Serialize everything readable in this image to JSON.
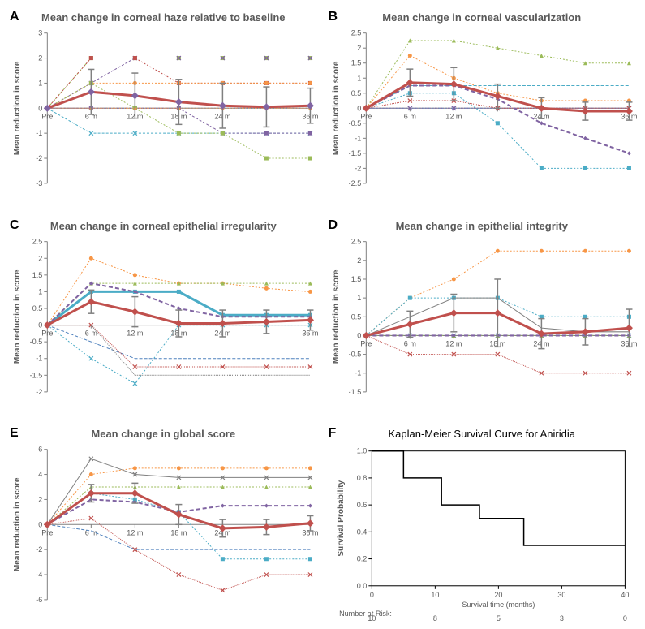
{
  "panels": {
    "A": {
      "label": "A",
      "title": "Mean change in corneal haze relative to baseline",
      "ylabel": "Mean reduction in score",
      "xticks": [
        "Pre",
        "6 m",
        "12 m",
        "18 m",
        "24 m",
        "",
        "36 m"
      ],
      "ylim": [
        -3,
        3
      ],
      "ytick_step": 1,
      "main": {
        "color": "#c0504d",
        "values": [
          0,
          0.65,
          0.5,
          0.25,
          0.1,
          0.05,
          0.1
        ],
        "marker": "diamond",
        "marker_color": "#8064a2",
        "err": [
          0,
          0.9,
          0.9,
          0.9,
          0.9,
          0.8,
          0.7
        ]
      },
      "series": [
        {
          "color": "#9bbb59",
          "dash": "3,2",
          "values": [
            0,
            2,
            2,
            2,
            2,
            2,
            2
          ],
          "marker": "square"
        },
        {
          "color": "#8064a2",
          "dash": "3,2",
          "values": [
            0,
            1,
            2,
            2,
            2,
            2,
            2
          ],
          "marker": "x"
        },
        {
          "color": "#c0504d",
          "dash": "2,2",
          "values": [
            0,
            2,
            2,
            1,
            1,
            1,
            1
          ],
          "marker": "square"
        },
        {
          "color": "#4f81bd",
          "dash": "2,2",
          "values": [
            0,
            0,
            0,
            0,
            0,
            0,
            0
          ],
          "marker": "diamond"
        },
        {
          "color": "#f79646",
          "dash": "2,2",
          "values": [
            0,
            1,
            1,
            1,
            1,
            1,
            1
          ],
          "marker": "circle"
        },
        {
          "color": "#4bacc6",
          "dash": "3,2",
          "values": [
            0,
            -1,
            -1,
            -1,
            -1,
            -1,
            -1
          ],
          "marker": "x"
        },
        {
          "color": "#8064a2",
          "dash": "3,2",
          "values": [
            0,
            0,
            0,
            0,
            -1,
            -1,
            -1
          ],
          "marker": "square"
        },
        {
          "color": "#9bbb59",
          "dash": "2,2",
          "values": [
            0,
            1,
            0,
            -1,
            -1,
            -2,
            -2
          ],
          "marker": "square"
        },
        {
          "color": "#f79646",
          "dash": "1,1",
          "values": [
            0,
            0,
            0,
            0,
            0,
            0,
            0
          ],
          "marker": "triangle"
        }
      ]
    },
    "B": {
      "label": "B",
      "title": "Mean change in corneal vascularization",
      "ylabel": "Mean reduction in score",
      "xticks": [
        "Pre",
        "6 m",
        "12 m",
        "",
        "24 m",
        "",
        "36 m"
      ],
      "ylim": [
        -2.5,
        2.5
      ],
      "ytick_step": 0.5,
      "main": {
        "color": "#c0504d",
        "values": [
          0,
          0.85,
          0.8,
          0.4,
          0,
          -0.1,
          -0.1
        ],
        "marker": "diamond",
        "marker_color": "#c0504d",
        "err": [
          0,
          0.45,
          0.55,
          0.4,
          0.35,
          0.3,
          0.3
        ]
      },
      "secondary": {
        "color": "#8064a2",
        "dash": "5,3",
        "values": [
          0,
          0.75,
          0.75,
          0.3,
          -0.5,
          -1,
          -1.5
        ],
        "marker": "diamond",
        "width": 2
      },
      "series": [
        {
          "color": "#9bbb59",
          "dash": "2,2",
          "values": [
            0,
            2.25,
            2.25,
            2,
            1.75,
            1.5,
            1.5
          ],
          "marker": "triangle"
        },
        {
          "color": "#f79646",
          "dash": "2,2",
          "values": [
            0,
            1.75,
            1,
            0.5,
            0.25,
            0.25,
            0.25
          ],
          "marker": "circle"
        },
        {
          "color": "#4bacc6",
          "dash": "4,2",
          "values": [
            0,
            0.75,
            0.75,
            0.75,
            0.75,
            0.75,
            0.75
          ],
          "marker": "none"
        },
        {
          "color": "#4f81bd",
          "dash": "2,2",
          "values": [
            0,
            0,
            0,
            0,
            0,
            0,
            0
          ],
          "marker": "x"
        },
        {
          "color": "#8064a2",
          "dash": "1,1",
          "values": [
            0,
            0,
            0,
            0,
            0,
            0,
            0
          ],
          "marker": "x"
        },
        {
          "color": "#4bacc6",
          "dash": "2,2",
          "values": [
            0,
            0.5,
            0.5,
            -0.5,
            -2,
            -2,
            -2
          ],
          "marker": "square"
        },
        {
          "color": "#c0504d",
          "dash": "1,1",
          "values": [
            0,
            0.25,
            0.25,
            0,
            0,
            0,
            0
          ],
          "marker": "x"
        }
      ]
    },
    "C": {
      "label": "C",
      "title": "Mean change in corneal epithelial irregularity",
      "ylabel": "Mean reduction in score",
      "xticks": [
        "Pre",
        "6 m",
        "12 m",
        "18 m",
        "24 m",
        "",
        "36 m"
      ],
      "ylim": [
        -2,
        2.5
      ],
      "ytick_step": 0.5,
      "main": {
        "color": "#c0504d",
        "values": [
          0,
          0.7,
          0.4,
          0.05,
          0.05,
          0.1,
          0.15
        ],
        "marker": "diamond",
        "marker_color": "#c0504d",
        "err": [
          0,
          0.35,
          0.45,
          0.4,
          0.4,
          0.35,
          0.3
        ]
      },
      "secondary": {
        "color": "#8064a2",
        "dash": "5,3",
        "values": [
          0,
          1.25,
          1,
          0.5,
          0.25,
          0.25,
          0.25
        ],
        "marker": "diamond",
        "width": 2
      },
      "tertiary": {
        "color": "#4bacc6",
        "dash": "0",
        "values": [
          0,
          1,
          1,
          1,
          0.3,
          0.3,
          0.3
        ],
        "marker": "square",
        "width": 3
      },
      "series": [
        {
          "color": "#f79646",
          "dash": "2,2",
          "values": [
            0,
            2,
            1.5,
            1.25,
            1.25,
            1.1,
            1
          ],
          "marker": "circle"
        },
        {
          "color": "#9bbb59",
          "dash": "2,2",
          "values": [
            0,
            1.25,
            1.25,
            1.25,
            1.25,
            1.25,
            1.25
          ],
          "marker": "triangle"
        },
        {
          "color": "#4f81bd",
          "dash": "4,2",
          "values": [
            0,
            -0.5,
            -1,
            -1,
            -1,
            -1,
            -1
          ],
          "marker": "none"
        },
        {
          "color": "#4bacc6",
          "dash": "2,2",
          "values": [
            0,
            -1,
            -1.75,
            0,
            0,
            0,
            0
          ],
          "marker": "x"
        },
        {
          "color": "#c0504d",
          "dash": "1,1",
          "values": [
            0,
            0,
            -1.25,
            -1.25,
            -1.25,
            -1.25,
            -1.25
          ],
          "marker": "x"
        },
        {
          "color": "#808080",
          "dash": "1,1",
          "values": [
            0,
            0,
            -1.5,
            -1.5,
            -1.5,
            -1.5,
            -1.5
          ],
          "marker": "none"
        }
      ]
    },
    "D": {
      "label": "D",
      "title": "Mean change in epithelial integrity",
      "ylabel": "Mean reduction in score",
      "xticks": [
        "Pre",
        "6 m",
        "12 m",
        "18 m",
        "24 m",
        "",
        "36 m"
      ],
      "ylim": [
        -1.5,
        2.5
      ],
      "ytick_step": 0.5,
      "main": {
        "color": "#c0504d",
        "values": [
          0,
          0.3,
          0.6,
          0.6,
          0.05,
          0.1,
          0.2
        ],
        "marker": "diamond",
        "marker_color": "#c0504d",
        "err": [
          0,
          0.35,
          0.5,
          0.9,
          0.4,
          0.35,
          0.5
        ]
      },
      "secondary": {
        "color": "#8064a2",
        "dash": "5,3",
        "values": [
          0,
          0,
          0,
          0,
          0,
          0,
          0
        ],
        "marker": "diamond",
        "width": 2
      },
      "series": [
        {
          "color": "#f79646",
          "dash": "2,2",
          "values": [
            0,
            1,
            1.5,
            2.25,
            2.25,
            2.25,
            2.25
          ],
          "marker": "circle"
        },
        {
          "color": "#4bacc6",
          "dash": "2,2",
          "values": [
            0,
            1,
            1,
            1,
            0.5,
            0.5,
            0.5
          ],
          "marker": "square"
        },
        {
          "color": "#808080",
          "dash": "0",
          "values": [
            0,
            0.5,
            1,
            1,
            0.2,
            0.1,
            0.1
          ],
          "marker": "none"
        },
        {
          "color": "#4f81bd",
          "dash": "2,2",
          "values": [
            0,
            0,
            0,
            0,
            0,
            0,
            0
          ],
          "marker": "x"
        },
        {
          "color": "#c0504d",
          "dash": "1,1",
          "values": [
            0,
            -0.5,
            -0.5,
            -0.5,
            -1,
            -1,
            -1
          ],
          "marker": "x"
        },
        {
          "color": "#9bbb59",
          "dash": "2,2",
          "values": [
            0,
            0,
            0,
            0,
            0,
            0,
            0
          ],
          "marker": "triangle"
        }
      ]
    },
    "E": {
      "label": "E",
      "title": "Mean change in global score",
      "ylabel": "Mean reduction in score",
      "xticks": [
        "Pre",
        "6 m",
        "12 m",
        "18 m",
        "24 m",
        "",
        "36 m"
      ],
      "ylim": [
        -6,
        6
      ],
      "ytick_step": 2,
      "main": {
        "color": "#c0504d",
        "values": [
          0,
          2.5,
          2.5,
          0.8,
          -0.3,
          -0.2,
          0.1
        ],
        "marker": "diamond",
        "marker_color": "#c0504d",
        "err": [
          0,
          0.7,
          0.8,
          0.8,
          0.7,
          0.6,
          0.6
        ]
      },
      "secondary": {
        "color": "#8064a2",
        "dash": "5,3",
        "values": [
          0,
          2,
          1.8,
          1,
          1.5,
          1.5,
          1.5
        ],
        "marker": "diamond",
        "width": 2
      },
      "series": [
        {
          "color": "#808080",
          "dash": "0",
          "values": [
            0,
            5.25,
            4,
            3.75,
            3.75,
            3.75,
            3.75
          ],
          "marker": "x"
        },
        {
          "color": "#f79646",
          "dash": "2,2",
          "values": [
            0,
            4,
            4.5,
            4.5,
            4.5,
            4.5,
            4.5
          ],
          "marker": "circle"
        },
        {
          "color": "#9bbb59",
          "dash": "2,2",
          "values": [
            0,
            3,
            3,
            3,
            3,
            3,
            3
          ],
          "marker": "triangle"
        },
        {
          "color": "#4bacc6",
          "dash": "2,2",
          "values": [
            0,
            2.5,
            2,
            1,
            -2.75,
            -2.75,
            -2.75
          ],
          "marker": "square"
        },
        {
          "color": "#c0504d",
          "dash": "1,1",
          "values": [
            0,
            0.5,
            -2,
            -4,
            -5.25,
            -4,
            -4
          ],
          "marker": "x"
        },
        {
          "color": "#4f81bd",
          "dash": "4,2",
          "values": [
            0,
            -0.5,
            -2,
            -2,
            -2,
            -2,
            -2
          ],
          "marker": "none"
        }
      ]
    },
    "F": {
      "label": "F",
      "title": "Kaplan-Meier Survival Curve for Aniridia",
      "ylabel": "Survival Probability",
      "xlabel": "Survival time (months)",
      "xlim": [
        0,
        40
      ],
      "xtick_step": 10,
      "ylim": [
        0,
        1.0
      ],
      "ytick_step": 0.2,
      "km_steps": [
        [
          0,
          1.0
        ],
        [
          5,
          1.0
        ],
        [
          5,
          0.8
        ],
        [
          11,
          0.8
        ],
        [
          11,
          0.6
        ],
        [
          17,
          0.6
        ],
        [
          17,
          0.5
        ],
        [
          24,
          0.5
        ],
        [
          24,
          0.3
        ],
        [
          40,
          0.3
        ]
      ],
      "risk_label": "Number at Risk:",
      "risk_values": [
        "10",
        "8",
        "5",
        "3",
        "0"
      ]
    }
  },
  "colors": {
    "background": "#ffffff",
    "axis": "#808080",
    "text": "#595959"
  }
}
